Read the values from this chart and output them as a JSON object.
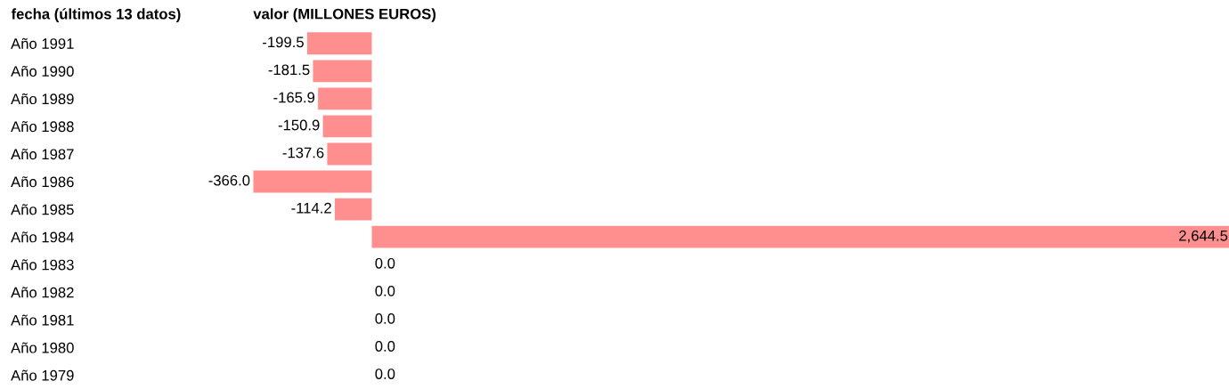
{
  "chart_data": {
    "type": "bar",
    "orientation": "horizontal",
    "ylabel": "fecha (últimos 13 datos)",
    "xlabel": "valor (MILLONES EUROS)",
    "categories": [
      "Año 1991",
      "Año 1990",
      "Año 1989",
      "Año 1988",
      "Año 1987",
      "Año 1986",
      "Año 1985",
      "Año 1984",
      "Año 1983",
      "Año 1982",
      "Año 1981",
      "Año 1980",
      "Año 1979"
    ],
    "values": [
      -199.5,
      -181.5,
      -165.9,
      -150.9,
      -137.6,
      -366.0,
      -114.2,
      2644.5,
      0.0,
      0.0,
      0.0,
      0.0,
      0.0
    ],
    "value_labels": [
      "-199.5",
      "-181.5",
      "-165.9",
      "-150.9",
      "-137.6",
      "-366.0",
      "-114.2",
      "2,644.5",
      "0.0",
      "0.0",
      "0.0",
      "0.0",
      "0.0"
    ],
    "color": "#ff8f8f",
    "tick_labels": "y",
    "grid": false,
    "legend": false
  }
}
